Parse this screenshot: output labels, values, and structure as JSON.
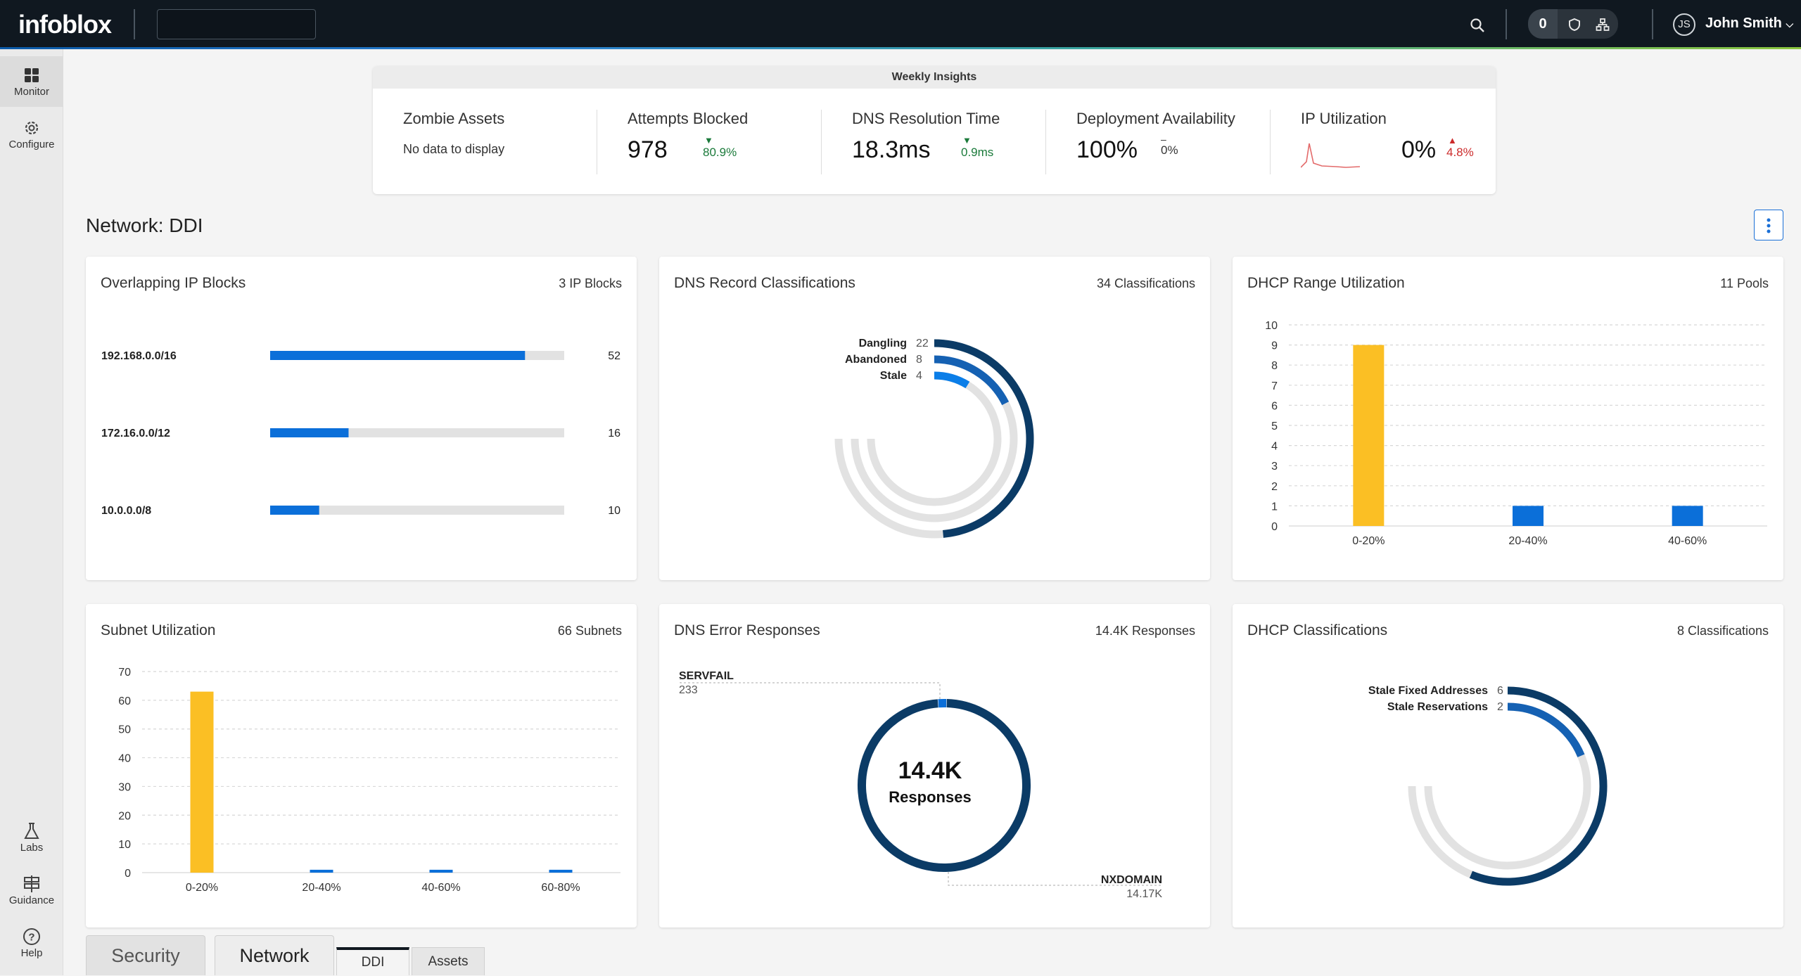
{
  "topbar": {
    "logo": "infoblox",
    "notifications_count": "0",
    "user_initials": "JS",
    "user_name": "John Smith"
  },
  "sidebar": {
    "items": [
      {
        "label": "Monitor",
        "icon": "grid-icon"
      },
      {
        "label": "Configure",
        "icon": "gear-icon"
      },
      {
        "label": "Labs",
        "icon": "flask-icon"
      },
      {
        "label": "Guidance",
        "icon": "signpost-icon"
      },
      {
        "label": "Help",
        "icon": "question-icon"
      }
    ]
  },
  "insights": {
    "header": "Weekly Insights",
    "kpis": [
      {
        "title": "Zombie Assets",
        "sub": "No data to display"
      },
      {
        "title": "Attempts Blocked",
        "value": "978",
        "delta": "80.9%",
        "direction": "down"
      },
      {
        "title": "DNS Resolution Time",
        "value": "18.3ms",
        "delta": "0.9ms",
        "direction": "down"
      },
      {
        "title": "Deployment Availability",
        "value": "100%",
        "delta": "0%",
        "direction": "flat"
      },
      {
        "title": "IP Utilization",
        "value": "0%",
        "delta": "4.8%",
        "direction": "up"
      }
    ]
  },
  "page": {
    "title": "Network: DDI"
  },
  "cards": {
    "overlapping": {
      "title": "Overlapping IP Blocks",
      "count": "3 IP Blocks"
    },
    "dns_records": {
      "title": "DNS Record Classifications",
      "count": "34 Classifications"
    },
    "dhcp_range": {
      "title": "DHCP Range Utilization",
      "count": "11 Pools"
    },
    "subnet": {
      "title": "Subnet Utilization",
      "count": "66 Subnets"
    },
    "dns_errors": {
      "title": "DNS Error Responses",
      "count": "14.4K Responses",
      "center_value": "14.4K",
      "center_label": "Responses"
    },
    "dhcp_class": {
      "title": "DHCP Classifications",
      "count": "8 Classifications"
    }
  },
  "tabs": {
    "main": [
      "Security",
      "Network"
    ],
    "active_main": "Network",
    "sub": [
      "DDI",
      "Assets"
    ],
    "active_sub": "DDI"
  },
  "colors": {
    "primary": "#0b6fd9",
    "dark_blue": "#0b3b66",
    "yellow": "#fbbf24",
    "track": "#e2e2e2",
    "down": "#1a7a3a",
    "up": "#cc2b2b"
  },
  "chart_data": [
    {
      "id": "overlapping",
      "type": "bar",
      "orientation": "horizontal",
      "categories": [
        "192.168.0.0/16",
        "172.16.0.0/12",
        "10.0.0.0/8"
      ],
      "values": [
        52,
        16,
        10
      ],
      "xlim": [
        0,
        60
      ]
    },
    {
      "id": "dns_records",
      "type": "pie",
      "variant": "radial-rings",
      "labels": [
        "Dangling",
        "Abandoned",
        "Stale"
      ],
      "values": [
        22,
        8,
        4
      ],
      "total": 34
    },
    {
      "id": "dhcp_range",
      "type": "bar",
      "categories": [
        "0-20%",
        "20-40%",
        "40-60%"
      ],
      "values": [
        9,
        1,
        1
      ],
      "ylim": [
        0,
        10
      ],
      "yticks": [
        0,
        1,
        2,
        3,
        4,
        5,
        6,
        7,
        8,
        9,
        10
      ]
    },
    {
      "id": "subnet",
      "type": "bar",
      "categories": [
        "0-20%",
        "20-40%",
        "40-60%",
        "60-80%"
      ],
      "values": [
        63,
        1,
        1,
        1
      ],
      "ylim": [
        0,
        70
      ],
      "yticks": [
        0,
        10,
        20,
        30,
        40,
        50,
        60,
        70
      ]
    },
    {
      "id": "dns_errors",
      "type": "pie",
      "variant": "donut",
      "labels": [
        "SERVFAIL",
        "NXDOMAIN"
      ],
      "value_labels": [
        "233",
        "14.17K"
      ],
      "values": [
        233,
        14170
      ]
    },
    {
      "id": "dhcp_class",
      "type": "pie",
      "variant": "radial-rings",
      "labels": [
        "Stale Fixed Addresses",
        "Stale Reservations"
      ],
      "values": [
        6,
        2
      ],
      "total": 8
    }
  ]
}
